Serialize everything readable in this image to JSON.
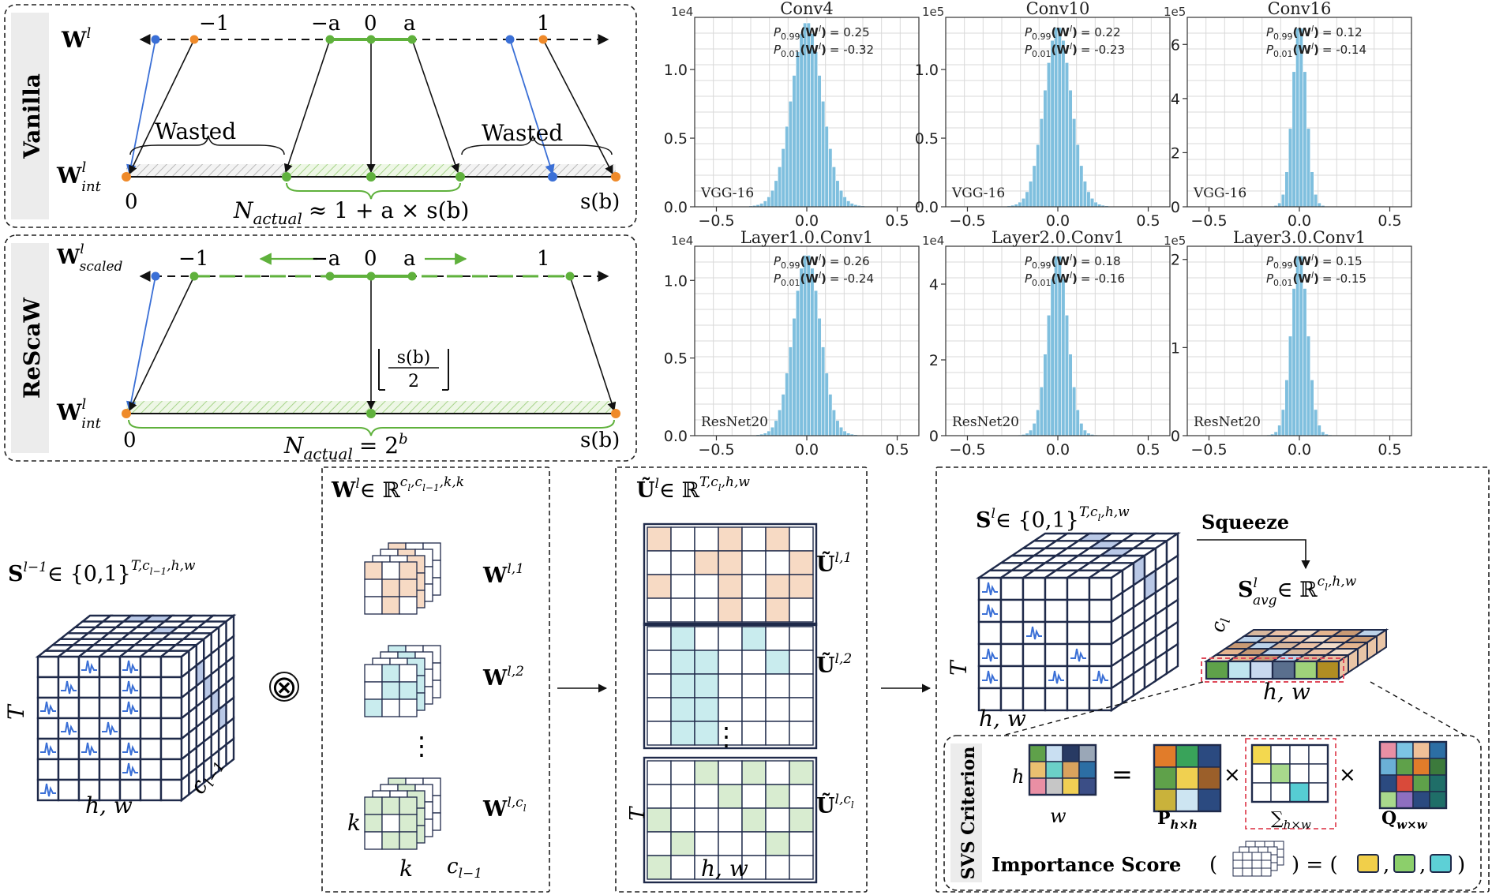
{
  "quantization": {
    "vanilla": {
      "tab_label": "Vanilla",
      "w_label": "W",
      "w_sup": "l",
      "w_int_label": "W",
      "w_int_sup": "l",
      "w_int_sub": "int",
      "tick_neg1": "−1",
      "tick_nega": "−a",
      "tick_zero": "0",
      "tick_a": "a",
      "tick_pos1": "1",
      "wasted_left": "Wasted",
      "wasted_right": "Wasted",
      "bottom_zero": "0",
      "bottom_sb": "s(b)",
      "n_actual_prefix": "N",
      "n_actual_sub": "actual",
      "n_actual_formula": "≈ 1 + a × s(b)"
    },
    "rescaw": {
      "tab_label": "ReScaW",
      "w_label": "W",
      "w_sup": "l",
      "w_sub": "scaled",
      "w_int_label": "W",
      "w_int_sup": "l",
      "w_int_sub": "int",
      "tick_neg1": "−1",
      "tick_nega": "−a",
      "tick_zero": "0",
      "tick_a": "a",
      "tick_pos1": "1",
      "floor_num": "s(b)",
      "floor_den": "2",
      "bottom_zero": "0",
      "bottom_sb": "s(b)",
      "n_actual_prefix": "N",
      "n_actual_sub": "actual",
      "n_actual_formula": "= 2",
      "n_actual_exp": "b"
    }
  },
  "chart_data": [
    {
      "type": "bar",
      "title": "Conv4",
      "scale": "1e4",
      "network": "VGG-16",
      "p99_label": "P",
      "p99_sub": "0.99",
      "p99_value": "= 0.25",
      "p01_label": "P",
      "p01_sub": "0.01",
      "p01_value": "= -0.32",
      "xticks": [
        -0.5,
        0.0,
        0.5
      ],
      "xtick_labels": [
        "−0.5",
        "0.0",
        "0.5"
      ],
      "yticks": [
        0.0,
        0.5,
        1.0
      ],
      "ytick_labels": [
        "0.0",
        "0.5",
        "1.0"
      ],
      "xlim": [
        -0.62,
        0.62
      ],
      "ylim": [
        0,
        1.38
      ],
      "peak": 1.3,
      "sigma": 0.085
    },
    {
      "type": "bar",
      "title": "Conv10",
      "scale": "1e5",
      "network": "VGG-16",
      "p99_label": "P",
      "p99_sub": "0.99",
      "p99_value": "= 0.22",
      "p01_label": "P",
      "p01_sub": "0.01",
      "p01_value": "= -0.23",
      "xticks": [
        -0.5,
        0.0,
        0.5
      ],
      "xtick_labels": [
        "−0.5",
        "0.0",
        "0.5"
      ],
      "yticks": [
        0.0,
        0.5,
        1.0
      ],
      "ytick_labels": [
        "0.0",
        "0.5",
        "1.0"
      ],
      "xlim": [
        -0.62,
        0.62
      ],
      "ylim": [
        0,
        1.38
      ],
      "peak": 1.27,
      "sigma": 0.075
    },
    {
      "type": "bar",
      "title": "Conv16",
      "scale": "1e5",
      "network": "VGG-16",
      "p99_label": "P",
      "p99_sub": "0.99",
      "p99_value": "= 0.12",
      "p01_label": "P",
      "p01_sub": "0.01",
      "p01_value": "= -0.14",
      "xticks": [
        -0.5,
        0.0,
        0.5
      ],
      "xtick_labels": [
        "−0.5",
        "0.0",
        "0.5"
      ],
      "yticks": [
        0,
        2,
        4,
        6
      ],
      "ytick_labels": [
        "0",
        "2",
        "4",
        "6"
      ],
      "xlim": [
        -0.62,
        0.62
      ],
      "ylim": [
        0,
        7.0
      ],
      "peak": 6.6,
      "sigma": 0.038
    },
    {
      "type": "bar",
      "title": "Layer1.0.Conv1",
      "scale": "1e4",
      "network": "ResNet20",
      "p99_label": "P",
      "p99_sub": "0.99",
      "p99_value": "= 0.26",
      "p01_label": "P",
      "p01_sub": "0.01",
      "p01_value": "= -0.24",
      "xticks": [
        -0.5,
        0.0,
        0.5
      ],
      "xtick_labels": [
        "−0.5",
        "0.0",
        "0.5"
      ],
      "yticks": [
        0.0,
        0.5,
        1.0
      ],
      "ytick_labels": [
        "0.0",
        "0.5",
        "1.0"
      ],
      "xlim": [
        -0.62,
        0.62
      ],
      "ylim": [
        0,
        1.22
      ],
      "peak": 1.13,
      "sigma": 0.075
    },
    {
      "type": "bar",
      "title": "Layer2.0.Conv1",
      "scale": "1e4",
      "network": "ResNet20",
      "p99_label": "P",
      "p99_sub": "0.99",
      "p99_value": "= 0.18",
      "p01_label": "P",
      "p01_sub": "0.01",
      "p01_value": "= -0.16",
      "xticks": [
        -0.5,
        0.0,
        0.5
      ],
      "xtick_labels": [
        "−0.5",
        "0.0",
        "0.5"
      ],
      "yticks": [
        0,
        2,
        4
      ],
      "ytick_labels": [
        "0",
        "2",
        "4"
      ],
      "xlim": [
        -0.62,
        0.62
      ],
      "ylim": [
        0,
        5.0
      ],
      "peak": 4.65,
      "sigma": 0.055
    },
    {
      "type": "bar",
      "title": "Layer3.0.Conv1",
      "scale": "1e5",
      "network": "ResNet20",
      "p99_label": "P",
      "p99_sub": "0.99",
      "p99_value": "= 0.15",
      "p01_label": "P",
      "p01_sub": "0.01",
      "p01_value": "= -0.15",
      "xticks": [
        -0.5,
        0.0,
        0.5
      ],
      "xtick_labels": [
        "−0.5",
        "0.0",
        "0.5"
      ],
      "yticks": [
        0,
        1,
        2
      ],
      "ytick_labels": [
        "0",
        "1",
        "2"
      ],
      "xlim": [
        -0.62,
        0.62
      ],
      "ylim": [
        0,
        2.15
      ],
      "peak": 2.02,
      "sigma": 0.045
    }
  ],
  "pipeline": {
    "s_prev_label": "S",
    "s_prev_sup": "l−1",
    "s_prev_set": "∈ {0,1}",
    "s_prev_dims": "T,c",
    "s_prev_dims_tail": ",h,w",
    "cube_t": "T",
    "cube_hw": "h, w",
    "cube_c": "c",
    "cube_c_sub": "l−1",
    "conv_op": "⊗",
    "w_header": "W",
    "w_header_sup": "l",
    "w_header_set": "∈ ℝ",
    "w_header_dims": "c",
    "w_filters": [
      {
        "label": "W",
        "sup": "l,1",
        "color": "#f7dac4"
      },
      {
        "label": "W",
        "sup": "l,2",
        "color": "#c9ecee"
      },
      {
        "label": "W",
        "sup": "l,c",
        "sub": "l",
        "color": "#d8ecd0"
      }
    ],
    "w_dots": "⋮",
    "w_k1": "k",
    "w_k2": "k",
    "w_c": "c",
    "w_c_sub": "l−1",
    "u_header": "Ũ",
    "u_header_sup": "l",
    "u_header_set": "∈ ℝ",
    "u_header_dims": "T,c",
    "u_maps": [
      {
        "label": "Ũ",
        "sup": "l,1",
        "color": "#f7dac4"
      },
      {
        "label": "Ũ",
        "sup": "l,2",
        "color": "#c9ecee"
      },
      {
        "label": "Ũ",
        "sup": "l,c",
        "color": "#d8ecd0"
      }
    ],
    "u_dots": "⋮",
    "u_t": "T",
    "u_hw": "h, w",
    "s_label": "S",
    "s_sup": "l",
    "s_set": "∈ {0,1}",
    "s_dims": "T,c",
    "s_dims_tail": ",h,w",
    "squeeze": "Squeeze",
    "savg_label": "S",
    "savg_sup": "l",
    "savg_sub": "avg",
    "savg_set": "∈ ℝ",
    "savg_dims": "c",
    "savg_dims_tail": ",h,w",
    "savg_c": "c",
    "savg_c_sub": "l",
    "savg_hw": "h, w",
    "s_cube_t": "T",
    "s_cube_hw": "h, w"
  },
  "svs": {
    "tab_label": "SVS Criterion",
    "h_label": "h",
    "w_label": "w",
    "eq": "=",
    "times1": "×",
    "times2": "×",
    "p_label": "P",
    "p_sub": "h×h",
    "sigma_label": "∑",
    "sigma_sub": "h×w",
    "q_label": "Q",
    "q_sub": "w×w",
    "importance_label": "Importance Score",
    "importance_open": "(",
    "importance_close": ") = (",
    "importance_end": ")",
    "comma1": ",",
    "comma2": ","
  },
  "colors": {
    "green": "#5fb13c",
    "orange": "#ef8a2a",
    "blue": "#3a6fd6",
    "navy": "#1f2a4a",
    "bar": "#7fbfde"
  }
}
